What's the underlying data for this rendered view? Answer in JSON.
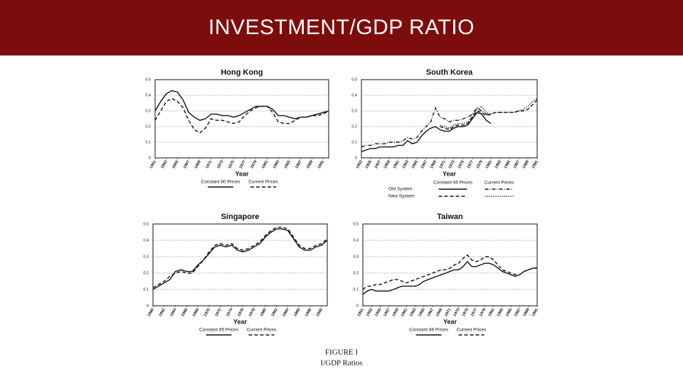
{
  "slide_title": "INVESTMENT/GDP RATIO",
  "caption": [
    "FIGURE I",
    "I/GDP Ratios"
  ],
  "chart_data": [
    {
      "type": "line",
      "title": "Hong Kong",
      "xlabel": "Year",
      "x": [
        1961,
        1962,
        1963,
        1964,
        1965,
        1966,
        1967,
        1968,
        1969,
        1970,
        1971,
        1972,
        1973,
        1974,
        1975,
        1976,
        1977,
        1978,
        1979,
        1980,
        1981,
        1982,
        1983,
        1984,
        1985,
        1986,
        1987,
        1988,
        1989,
        1990,
        1991,
        1992
      ],
      "xlim": [
        1961,
        1992
      ],
      "xticks": [
        1961,
        1963,
        1965,
        1967,
        1969,
        1971,
        1973,
        1975,
        1977,
        1979,
        1981,
        1983,
        1985,
        1987,
        1989,
        1991
      ],
      "ylim": [
        0,
        0.5
      ],
      "yticks": [
        0,
        0.1,
        0.2,
        0.3,
        0.4,
        0.5
      ],
      "grid": true,
      "series": [
        {
          "name": "Constant 80 Prices",
          "color": "#111111",
          "dash": "solid",
          "values": [
            0.3,
            0.36,
            0.41,
            0.43,
            0.42,
            0.37,
            0.29,
            0.26,
            0.24,
            0.25,
            0.28,
            0.28,
            0.27,
            0.27,
            0.26,
            0.27,
            0.29,
            0.31,
            0.33,
            0.33,
            0.33,
            0.31,
            0.27,
            0.27,
            0.26,
            0.25,
            0.26,
            0.26,
            0.27,
            0.28,
            0.29,
            0.3
          ]
        },
        {
          "name": "Current Prices",
          "color": "#111111",
          "dash": "dashed",
          "values": [
            0.24,
            0.3,
            0.36,
            0.38,
            0.36,
            0.32,
            0.24,
            0.18,
            0.16,
            0.19,
            0.25,
            0.24,
            0.24,
            0.23,
            0.22,
            0.23,
            0.27,
            0.3,
            0.32,
            0.33,
            0.33,
            0.29,
            0.23,
            0.22,
            0.22,
            0.24,
            0.26,
            0.26,
            0.27,
            0.27,
            0.28,
            0.3
          ]
        }
      ]
    },
    {
      "type": "line",
      "title": "South Korea",
      "xlabel": "Year",
      "x": [
        1953,
        1954,
        1955,
        1956,
        1957,
        1958,
        1959,
        1960,
        1961,
        1962,
        1963,
        1964,
        1965,
        1966,
        1967,
        1968,
        1969,
        1970,
        1971,
        1972,
        1973,
        1974,
        1975,
        1976,
        1977,
        1978,
        1979,
        1980,
        1981,
        1982,
        1983,
        1984,
        1985,
        1986,
        1987,
        1988,
        1989,
        1990,
        1991
      ],
      "xlim": [
        1953,
        1991
      ],
      "xticks": [
        1953,
        1955,
        1957,
        1959,
        1961,
        1963,
        1965,
        1967,
        1969,
        1971,
        1973,
        1975,
        1977,
        1979,
        1981,
        1983,
        1985,
        1987,
        1989,
        1991
      ],
      "ylim": [
        0,
        0.5
      ],
      "yticks": [
        0,
        0.1,
        0.2,
        0.3,
        0.4,
        0.5
      ],
      "grid": true,
      "legend_rows": [
        "Old System",
        "New System"
      ],
      "legend_columns": [
        "Constant 85 Prices",
        "Current Prices"
      ],
      "series": [
        {
          "legend_row": 0,
          "legend_column": 0,
          "color": "#111111",
          "dash": "solid",
          "values": [
            0.04,
            0.05,
            0.06,
            0.06,
            0.07,
            0.07,
            0.07,
            0.07,
            0.08,
            0.08,
            0.11,
            0.09,
            0.1,
            0.14,
            0.17,
            0.19,
            0.2,
            0.18,
            0.17,
            0.17,
            0.19,
            0.2,
            0.2,
            0.21,
            0.25,
            0.29,
            0.28,
            0.24,
            0.22,
            null,
            null,
            null,
            null,
            null,
            null,
            null,
            null,
            null,
            null
          ]
        },
        {
          "legend_row": 0,
          "legend_column": 1,
          "color": "#111111",
          "dash": "dashdot",
          "values": [
            0.07,
            0.08,
            0.08,
            0.09,
            0.09,
            0.09,
            0.1,
            0.1,
            0.1,
            0.11,
            0.13,
            0.12,
            0.13,
            0.17,
            0.2,
            0.23,
            0.32,
            0.26,
            0.25,
            0.23,
            0.24,
            0.24,
            0.25,
            0.26,
            0.28,
            0.32,
            0.3,
            0.28,
            0.27,
            null,
            null,
            null,
            null,
            null,
            null,
            null,
            null,
            null,
            null
          ]
        },
        {
          "legend_row": 1,
          "legend_column": 0,
          "color": "#111111",
          "dash": "dashed",
          "values": [
            null,
            null,
            null,
            null,
            null,
            null,
            null,
            null,
            null,
            null,
            null,
            null,
            null,
            null,
            null,
            null,
            null,
            0.2,
            0.19,
            0.18,
            0.2,
            0.21,
            0.21,
            0.22,
            0.26,
            0.3,
            0.29,
            0.27,
            0.28,
            0.29,
            0.29,
            0.29,
            0.29,
            0.29,
            0.3,
            0.3,
            0.31,
            0.34,
            0.37
          ]
        },
        {
          "legend_row": 1,
          "legend_column": 1,
          "color": "#111111",
          "dash": "dotted",
          "values": [
            null,
            null,
            null,
            null,
            null,
            null,
            null,
            null,
            null,
            null,
            null,
            null,
            null,
            null,
            null,
            null,
            null,
            0.21,
            0.2,
            0.19,
            0.21,
            0.22,
            0.22,
            0.23,
            0.27,
            0.31,
            0.33,
            0.29,
            0.28,
            0.29,
            0.29,
            0.29,
            0.29,
            0.29,
            0.3,
            0.31,
            0.33,
            0.36,
            0.38
          ]
        }
      ]
    },
    {
      "type": "line",
      "title": "Singapore",
      "xlabel": "Year",
      "x": [
        1960,
        1961,
        1962,
        1963,
        1964,
        1965,
        1966,
        1967,
        1968,
        1969,
        1970,
        1971,
        1972,
        1973,
        1974,
        1975,
        1976,
        1977,
        1978,
        1979,
        1980,
        1981,
        1982,
        1983,
        1984,
        1985,
        1986,
        1987,
        1988,
        1989,
        1990,
        1991
      ],
      "xlim": [
        1960,
        1991
      ],
      "xticks": [
        1960,
        1962,
        1964,
        1966,
        1968,
        1970,
        1972,
        1974,
        1976,
        1978,
        1980,
        1982,
        1984,
        1986,
        1988,
        1990
      ],
      "ylim": [
        0,
        0.5
      ],
      "yticks": [
        0,
        0.1,
        0.2,
        0.3,
        0.4,
        0.5
      ],
      "grid": true,
      "series": [
        {
          "name": "Constant 85 Prices",
          "color": "#111111",
          "dash": "solid",
          "values": [
            0.1,
            0.12,
            0.14,
            0.16,
            0.21,
            0.22,
            0.21,
            0.21,
            0.25,
            0.28,
            0.32,
            0.36,
            0.37,
            0.36,
            0.37,
            0.34,
            0.33,
            0.34,
            0.36,
            0.38,
            0.42,
            0.45,
            0.47,
            0.47,
            0.46,
            0.41,
            0.36,
            0.34,
            0.34,
            0.36,
            0.37,
            0.4
          ]
        },
        {
          "name": "Current Prices",
          "color": "#111111",
          "dash": "dashed",
          "values": [
            0.11,
            0.13,
            0.15,
            0.18,
            0.2,
            0.21,
            0.2,
            0.2,
            0.24,
            0.28,
            0.33,
            0.37,
            0.38,
            0.37,
            0.38,
            0.35,
            0.34,
            0.35,
            0.37,
            0.39,
            0.43,
            0.46,
            0.48,
            0.48,
            0.47,
            0.42,
            0.37,
            0.35,
            0.35,
            0.37,
            0.38,
            0.41
          ]
        }
      ]
    },
    {
      "type": "line",
      "title": "Taiwan",
      "xlabel": "Year",
      "x": [
        1951,
        1952,
        1953,
        1954,
        1955,
        1956,
        1957,
        1958,
        1959,
        1960,
        1961,
        1962,
        1963,
        1964,
        1965,
        1966,
        1967,
        1968,
        1969,
        1970,
        1971,
        1972,
        1973,
        1974,
        1975,
        1976,
        1977,
        1978,
        1979,
        1980,
        1981,
        1982,
        1983,
        1984,
        1985,
        1986,
        1987,
        1988,
        1989,
        1990,
        1991
      ],
      "xlim": [
        1951,
        1991
      ],
      "xticks": [
        1951,
        1953,
        1955,
        1957,
        1959,
        1961,
        1963,
        1965,
        1967,
        1969,
        1971,
        1973,
        1975,
        1977,
        1979,
        1981,
        1983,
        1985,
        1987,
        1989,
        1991
      ],
      "ylim": [
        0,
        0.5
      ],
      "yticks": [
        0,
        0.1,
        0.2,
        0.3,
        0.4,
        0.5
      ],
      "grid": true,
      "series": [
        {
          "name": "Constant 86 Prices",
          "color": "#111111",
          "dash": "solid",
          "values": [
            0.07,
            0.09,
            0.1,
            0.09,
            0.09,
            0.09,
            0.09,
            0.1,
            0.11,
            0.12,
            0.12,
            0.12,
            0.12,
            0.13,
            0.15,
            0.16,
            0.17,
            0.18,
            0.19,
            0.2,
            0.21,
            0.22,
            0.22,
            0.24,
            0.27,
            0.24,
            0.24,
            0.25,
            0.26,
            0.26,
            0.25,
            0.23,
            0.21,
            0.2,
            0.19,
            0.18,
            0.19,
            0.21,
            0.22,
            0.23,
            0.23
          ]
        },
        {
          "name": "Current Prices",
          "color": "#111111",
          "dash": "dashed",
          "values": [
            0.1,
            0.12,
            0.12,
            0.13,
            0.13,
            0.14,
            0.15,
            0.16,
            0.16,
            0.15,
            0.14,
            0.15,
            0.16,
            0.17,
            0.18,
            0.19,
            0.2,
            0.21,
            0.22,
            0.22,
            0.23,
            0.25,
            0.26,
            0.29,
            0.31,
            0.28,
            0.27,
            0.28,
            0.3,
            0.3,
            0.28,
            0.25,
            0.22,
            0.21,
            0.2,
            0.19,
            0.19,
            0.21,
            0.22,
            0.23,
            0.23
          ]
        }
      ]
    }
  ]
}
